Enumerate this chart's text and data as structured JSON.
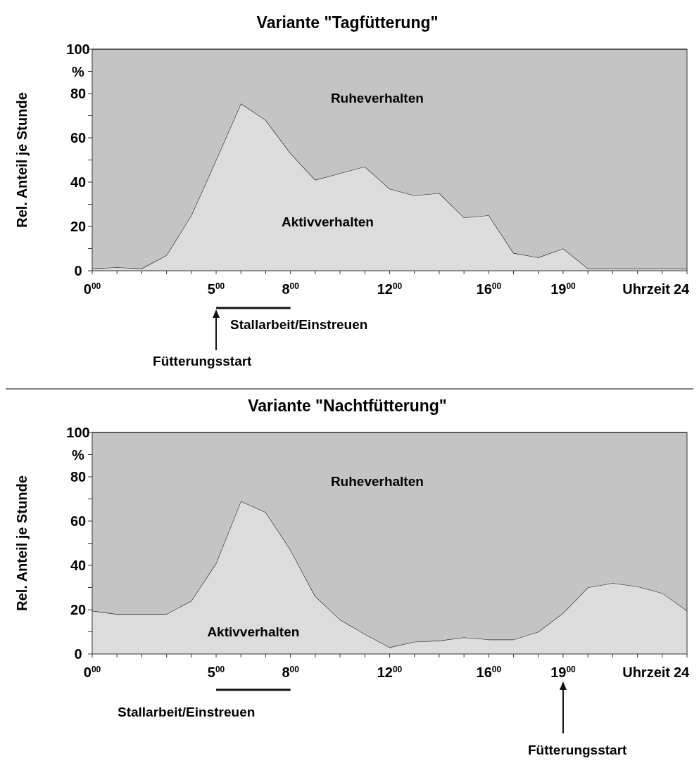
{
  "chart_data": [
    {
      "type": "area",
      "stacked": true,
      "title": "Variante \"Tagfütterung\"",
      "ylabel": "Rel. Anteil je Stunde",
      "xlabel": "Uhrzeit",
      "categories": [
        "0$^{00}$",
        null,
        null,
        null,
        null,
        "5$^{00}$",
        null,
        null,
        "8$^{00}$",
        null,
        null,
        null,
        "12$^{00}$",
        null,
        null,
        null,
        "16$^{00}$",
        null,
        null,
        "19$^{00}$",
        null,
        null,
        null,
        null,
        "24"
      ],
      "ylim": [
        0,
        100
      ],
      "yticks": [
        0,
        {
          "value": 10,
          "label": null
        },
        20,
        {
          "value": 30,
          "label": null
        },
        40,
        {
          "value": 50,
          "label": null
        },
        60,
        {
          "value": 70,
          "label": null
        },
        80,
        {
          "value": 90,
          "label": "%"
        },
        100
      ],
      "series": [
        {
          "name": "Aktivverhalten",
          "color": "#dcdcdc",
          "values": [
            1,
            1.5,
            1,
            7,
            25,
            50,
            75.5,
            68,
            53,
            41,
            44,
            47,
            37,
            34,
            35,
            24,
            25,
            8,
            6,
            10,
            1,
            1,
            1,
            1,
            1
          ]
        },
        {
          "name": "Ruheverhalten",
          "color": "#c4c4c4",
          "values": [
            99,
            98.5,
            99,
            93,
            75,
            50,
            24.5,
            32,
            47,
            59,
            56,
            53,
            63,
            66,
            65,
            76,
            75,
            92,
            94,
            90,
            99,
            99,
            99,
            99,
            99
          ]
        }
      ],
      "annotations": [
        "Stallarbeit/Einstreuen",
        "Fütterungsstart"
      ]
    },
    {
      "type": "area",
      "stacked": true,
      "title": "Variante \"Nachtfütterung\"",
      "ylabel": "Rel. Anteil je Stunde",
      "xlabel": "Uhrzeit",
      "categories": [
        "0$^{00}$",
        null,
        null,
        null,
        null,
        "5$^{00}$",
        null,
        null,
        "8$^{00}$",
        null,
        null,
        null,
        "12$^{00}$",
        null,
        null,
        null,
        "16$^{00}$",
        null,
        null,
        "19$^{00}$",
        null,
        null,
        null,
        null,
        "24"
      ],
      "ylim": [
        0,
        100
      ],
      "yticks": [
        0,
        {
          "value": 10,
          "label": null
        },
        20,
        {
          "value": 30,
          "label": null
        },
        40,
        {
          "value": 50,
          "label": null
        },
        60,
        {
          "value": 70,
          "label": null
        },
        80,
        {
          "value": 90,
          "label": "%"
        },
        100
      ],
      "series": [
        {
          "name": "Aktivverhalten",
          "color": "#dcdcdc",
          "values": [
            19.5,
            18,
            18,
            18,
            24,
            41,
            69,
            64,
            47,
            26,
            15.5,
            9,
            3,
            5.5,
            6,
            7.5,
            6.5,
            6.5,
            10,
            18.5,
            30,
            32,
            30.5,
            27.5,
            19.5
          ]
        },
        {
          "name": "Ruheverhalten",
          "color": "#c4c4c4",
          "values": [
            80.5,
            82,
            82,
            82,
            76,
            59,
            31,
            36,
            53,
            74,
            84.5,
            91,
            97,
            94.5,
            94,
            92.5,
            93.5,
            93.5,
            90,
            81.5,
            70,
            68,
            69.5,
            72.5,
            80.5
          ]
        }
      ],
      "annotations": [
        "Stallarbeit/Einstreuen",
        "Fütterungsstart"
      ]
    }
  ]
}
